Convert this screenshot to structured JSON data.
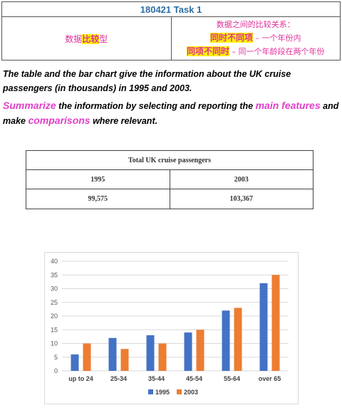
{
  "header": {
    "title": "180421 Task 1",
    "category_prefix": "数据",
    "category_highlight": "比较",
    "category_suffix": "型",
    "relation_title": "数据之间的比较关系：",
    "rule1_highlight": "同时不同项",
    "rule1_desc": " – 一个年份内",
    "rule2_highlight": "同项不同时",
    "rule2_desc": " – 同一个年龄段在两个年份"
  },
  "task": {
    "p1": "The table and the bar chart give the information about the UK cruise passengers (in thousands) in 1995 and 2003.",
    "p2_kw1": "Summarize",
    "p2_a": " the information by selecting and reporting the ",
    "p2_kw2": "main features",
    "p2_b": " and make ",
    "p2_kw3": "comparisons",
    "p2_c": " where relevant."
  },
  "table": {
    "title": "Total UK cruise passengers",
    "headers": [
      "1995",
      "2003"
    ],
    "values": [
      "99,575",
      "103,367"
    ]
  },
  "chart_data": {
    "type": "bar",
    "categories": [
      "up to 24",
      "25-34",
      "35-44",
      "45-54",
      "55-64",
      "over 65"
    ],
    "series": [
      {
        "name": "1995",
        "values": [
          6,
          12,
          13,
          14,
          22,
          32
        ],
        "color": "#4472c4"
      },
      {
        "name": "2003",
        "values": [
          10,
          8,
          10,
          15,
          23,
          35
        ],
        "color": "#ed7d31"
      }
    ],
    "yticks": [
      "0",
      "5",
      "10",
      "15",
      "20",
      "25",
      "30",
      "35",
      "40"
    ],
    "ylim": [
      0,
      40
    ],
    "grid": true,
    "legend_position": "bottom"
  }
}
